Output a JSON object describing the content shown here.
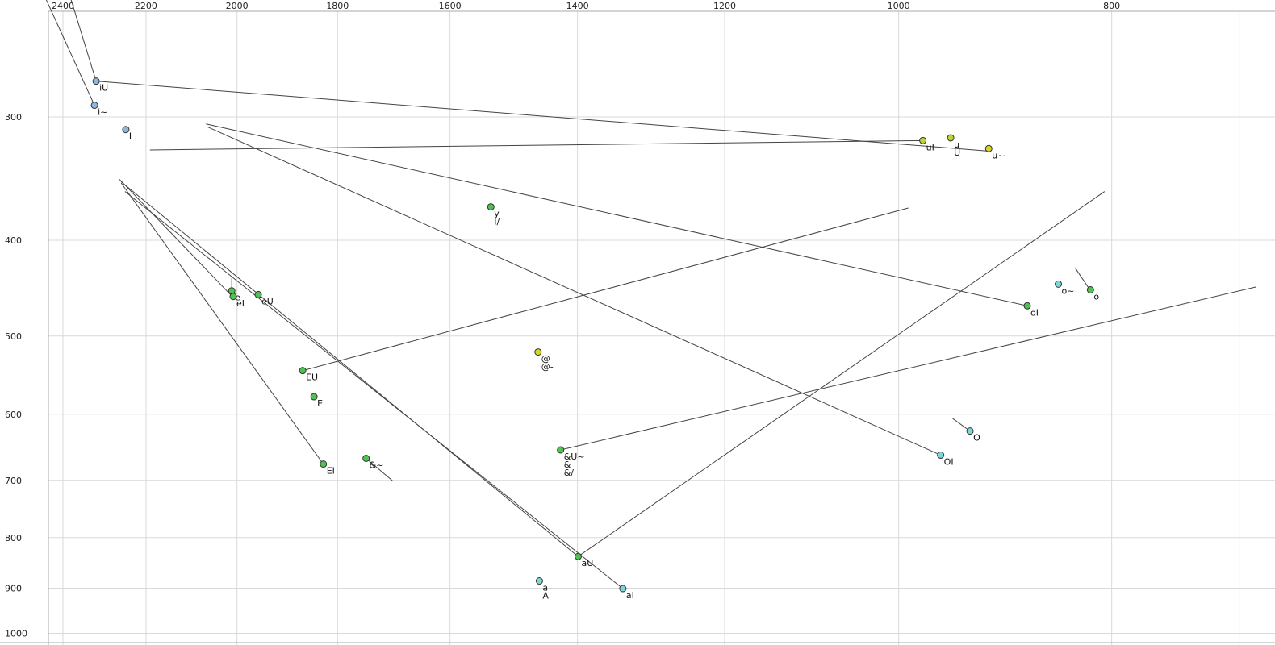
{
  "chart_data": {
    "type": "scatter",
    "title": "",
    "description": "Vowel formant plot: F2 (Hz) on reversed log x-axis (top), F1 (Hz) on log y-axis (left), with diphthong glide trajectory lines",
    "x_axis": {
      "label": "",
      "ticks": [
        2400,
        2200,
        2000,
        1800,
        1600,
        1400,
        1200,
        1000,
        800
      ],
      "extra_gridlines": [
        700
      ],
      "scale": "log",
      "reversed": true,
      "position": "top"
    },
    "y_axis": {
      "label": "",
      "ticks": [
        300,
        400,
        500,
        600,
        700,
        800,
        900,
        1000
      ],
      "scale": "log",
      "reversed": false,
      "position": "left"
    },
    "points": [
      {
        "labels": [
          "iU"
        ],
        "f2": 2318,
        "f1": 276,
        "color": "blue"
      },
      {
        "labels": [
          "i~"
        ],
        "f2": 2322,
        "f1": 292,
        "color": "blue"
      },
      {
        "labels": [
          "I"
        ],
        "f2": 2247,
        "f1": 309,
        "color": "blue"
      },
      {
        "labels": [
          "uI"
        ],
        "f2": 975,
        "f1": 317,
        "color": "yellowgreen"
      },
      {
        "labels": [
          "u",
          "U"
        ],
        "f2": 947,
        "f1": 315,
        "color": "yellowgreen"
      },
      {
        "labels": [
          "u~"
        ],
        "f2": 910,
        "f1": 323,
        "color": "yellow"
      },
      {
        "labels": [
          "y",
          "I/"
        ],
        "f2": 1533,
        "f1": 370,
        "color": "green"
      },
      {
        "labels": [
          "e"
        ],
        "f2": 2011,
        "f1": 450,
        "color": "green"
      },
      {
        "labels": [
          "eI"
        ],
        "f2": 2008,
        "f1": 456,
        "color": "green"
      },
      {
        "labels": [
          "eU"
        ],
        "f2": 1956,
        "f1": 454,
        "color": "green"
      },
      {
        "labels": [
          "o~"
        ],
        "f2": 846,
        "f1": 443,
        "color": "cyan"
      },
      {
        "labels": [
          "o"
        ],
        "f2": 818,
        "f1": 449,
        "color": "green"
      },
      {
        "labels": [
          "oI"
        ],
        "f2": 874,
        "f1": 466,
        "color": "green"
      },
      {
        "labels": [
          "@",
          "@-"
        ],
        "f2": 1459,
        "f1": 519,
        "color": "yellow"
      },
      {
        "labels": [
          "EU"
        ],
        "f2": 1867,
        "f1": 542,
        "color": "green"
      },
      {
        "labels": [
          "E"
        ],
        "f2": 1845,
        "f1": 576,
        "color": "green"
      },
      {
        "labels": [
          "O"
        ],
        "f2": 928,
        "f1": 624,
        "color": "cyan"
      },
      {
        "labels": [
          "&U~",
          "&",
          "&/"
        ],
        "f2": 1425,
        "f1": 652,
        "color": "green"
      },
      {
        "labels": [
          "OI"
        ],
        "f2": 957,
        "f1": 660,
        "color": "cyan"
      },
      {
        "labels": [
          "&~"
        ],
        "f2": 1747,
        "f1": 665,
        "color": "green"
      },
      {
        "labels": [
          "EI"
        ],
        "f2": 1827,
        "f1": 674,
        "color": "green"
      },
      {
        "labels": [
          "aU"
        ],
        "f2": 1399,
        "f1": 836,
        "color": "green"
      },
      {
        "labels": [
          "a",
          "A"
        ],
        "f2": 1457,
        "f1": 885,
        "color": "cyan"
      },
      {
        "labels": [
          "aI"
        ],
        "f2": 1335,
        "f1": 901,
        "color": "cyan"
      }
    ],
    "segments": [
      {
        "name": "i~-glide",
        "from": [
          2443,
          228
        ],
        "to": [
          2322,
          292
        ]
      },
      {
        "name": "iU-onglide",
        "from": [
          2380,
          228
        ],
        "to": [
          2318,
          276
        ]
      },
      {
        "name": "iU-glide",
        "from": [
          2318,
          276
        ],
        "to": [
          908,
          325
        ]
      },
      {
        "name": "uI-glide",
        "from": [
          975,
          317
        ],
        "to": [
          2191,
          324
        ]
      },
      {
        "name": "OI-glide",
        "from": [
          957,
          660
        ],
        "to": [
          2063,
          307
        ]
      },
      {
        "name": "oI-glide",
        "from": [
          874,
          466
        ],
        "to": [
          2066,
          305
        ]
      },
      {
        "name": "aU-onglide",
        "from": [
          1399,
          836
        ],
        "to": [
          2258,
          349
        ]
      },
      {
        "name": "aI-glide",
        "from": [
          1335,
          901
        ],
        "to": [
          2249,
          357
        ]
      },
      {
        "name": "aU-glide",
        "from": [
          1399,
          836
        ],
        "to": [
          806,
          357
        ]
      },
      {
        "name": "EU-glide",
        "from": [
          1867,
          542
        ],
        "to": [
          990,
          371
        ]
      },
      {
        "name": "EI-glide",
        "from": [
          1827,
          674
        ],
        "to": [
          2258,
          350
        ]
      },
      {
        "name": "eI-glide",
        "from": [
          2008,
          457
        ],
        "to": [
          2262,
          347
        ]
      },
      {
        "name": "&U~-glide",
        "from": [
          1425,
          652
        ],
        "to": [
          688,
          446
        ]
      },
      {
        "name": "o-glide",
        "from": [
          831,
          427
        ],
        "to": [
          819,
          448
        ]
      },
      {
        "name": "O-glide",
        "from": [
          945,
          606
        ],
        "to": [
          929,
          623
        ]
      },
      {
        "name": "&~-glide",
        "from": [
          1747,
          665
        ],
        "to": [
          1699,
          701
        ]
      },
      {
        "name": "e-glide",
        "from": [
          2011,
          437
        ],
        "to": [
          2011,
          450
        ]
      }
    ],
    "colors": {
      "blue": "#8ab8e0",
      "cyan": "#7fd6d6",
      "green": "#4fc24f",
      "yellowgreen": "#bcd42f",
      "yellow": "#d6d626",
      "line": "#444444",
      "grid": "#d9d9d9",
      "axis": "#aaaaaa",
      "dot_stroke": "#333333",
      "tick_text": "#222222"
    }
  }
}
